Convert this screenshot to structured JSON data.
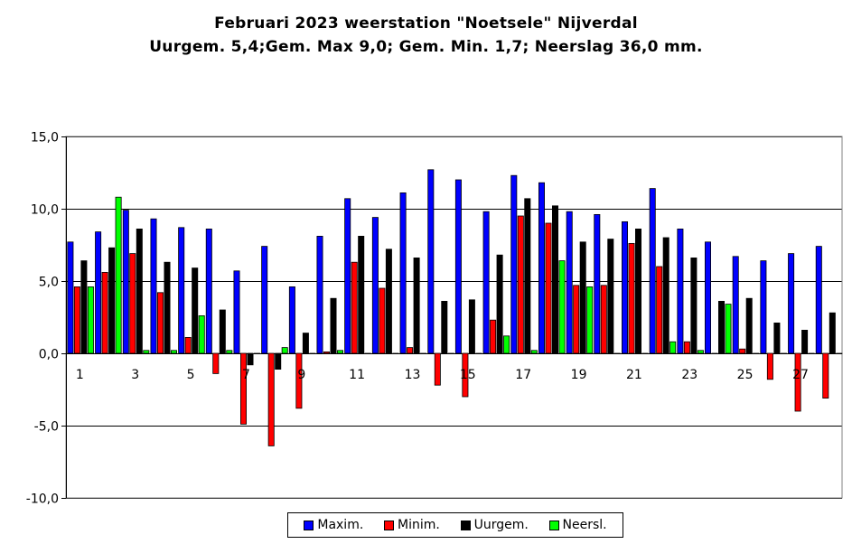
{
  "chart_data": {
    "type": "bar",
    "title_line1": "Februari 2023 weerstation \"Noetsele\" Nijverdal",
    "title_line2": "Uurgem. 5,4;Gem. Max 9,0; Gem. Min. 1,7;  Neerslag 36,0 mm.",
    "ylim": [
      -10,
      15
    ],
    "yticks": [
      "15,0",
      "10,0",
      "5,0",
      "0,0",
      "-5,0",
      "-10,0"
    ],
    "ytick_values": [
      15,
      10,
      5,
      0,
      -5,
      -10
    ],
    "xtick_labels": [
      "1",
      "3",
      "5",
      "7",
      "9",
      "11",
      "13",
      "15",
      "17",
      "19",
      "21",
      "23",
      "25",
      "27"
    ],
    "categories": [
      1,
      2,
      3,
      4,
      5,
      6,
      7,
      8,
      9,
      10,
      11,
      12,
      13,
      14,
      15,
      16,
      17,
      18,
      19,
      20,
      21,
      22,
      23,
      24,
      25,
      26,
      27,
      28
    ],
    "grid": true,
    "legend_placement": "bottom",
    "series": [
      {
        "name": "Maxim.",
        "color": "#0000ff",
        "values": [
          7.7,
          8.4,
          9.9,
          9.3,
          8.7,
          8.6,
          5.7,
          7.4,
          4.6,
          8.1,
          10.7,
          9.4,
          11.1,
          12.7,
          12.0,
          9.8,
          12.3,
          11.8,
          9.8,
          9.6,
          9.1,
          11.4,
          8.6,
          7.7,
          6.7,
          6.4,
          6.9,
          7.4
        ]
      },
      {
        "name": "Minim.",
        "color": "#ff0000",
        "values": [
          4.6,
          5.6,
          6.9,
          4.2,
          1.1,
          -1.4,
          -4.9,
          -6.4,
          -3.8,
          0.1,
          6.3,
          4.5,
          0.4,
          -2.2,
          -3.0,
          2.3,
          9.5,
          9.0,
          4.7,
          4.7,
          7.6,
          6.0,
          0.8,
          0.0,
          0.3,
          -1.8,
          -4.0,
          -3.1
        ]
      },
      {
        "name": "Uurgem.",
        "color": "#000000",
        "values": [
          6.4,
          7.3,
          8.6,
          6.3,
          5.9,
          3.0,
          -0.8,
          -1.1,
          1.4,
          3.8,
          8.1,
          7.2,
          6.6,
          3.6,
          3.7,
          6.8,
          10.7,
          10.2,
          7.7,
          7.9,
          8.6,
          8.0,
          6.6,
          3.6,
          3.8,
          2.1,
          1.6,
          2.8
        ]
      },
      {
        "name": "Neersl.",
        "color": "#00ff00",
        "values": [
          4.6,
          10.8,
          0.2,
          0.2,
          2.6,
          0.2,
          0.0,
          0.4,
          0.0,
          0.2,
          0.0,
          0.0,
          0.0,
          0.0,
          0.0,
          1.2,
          0.2,
          6.4,
          4.6,
          0.0,
          0.0,
          0.8,
          0.2,
          3.4,
          0.0,
          0.0,
          0.0,
          0.0
        ]
      }
    ]
  }
}
